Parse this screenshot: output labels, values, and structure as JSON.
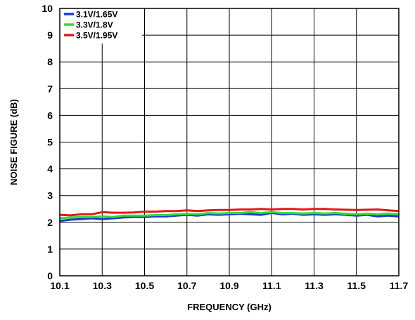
{
  "chart_data": {
    "type": "line",
    "title": "",
    "xlabel": "FREQUENCY (GHz)",
    "ylabel": "NOISE FIGURE (dB)",
    "xlim": [
      10.1,
      11.7
    ],
    "ylim": [
      0,
      10
    ],
    "x_ticks": [
      "10.1",
      "10.3",
      "10.5",
      "10.7",
      "10.9",
      "11.1",
      "11.3",
      "11.5",
      "11.7"
    ],
    "y_ticks": [
      "0",
      "1",
      "2",
      "3",
      "4",
      "5",
      "6",
      "7",
      "8",
      "9",
      "10"
    ],
    "grid": true,
    "legend_position": "top-left",
    "x": [
      10.1,
      10.15,
      10.2,
      10.25,
      10.3,
      10.35,
      10.4,
      10.45,
      10.5,
      10.55,
      10.6,
      10.65,
      10.7,
      10.75,
      10.8,
      10.85,
      10.9,
      10.95,
      11.0,
      11.05,
      11.1,
      11.15,
      11.2,
      11.25,
      11.3,
      11.35,
      11.4,
      11.45,
      11.5,
      11.55,
      11.6,
      11.65,
      11.7
    ],
    "series": [
      {
        "name": "3.1V/1.65V",
        "color": "#1a3ad6",
        "values": [
          2.05,
          2.1,
          2.12,
          2.15,
          2.12,
          2.15,
          2.18,
          2.2,
          2.2,
          2.22,
          2.22,
          2.25,
          2.28,
          2.25,
          2.3,
          2.28,
          2.3,
          2.32,
          2.3,
          2.28,
          2.35,
          2.3,
          2.32,
          2.28,
          2.3,
          2.28,
          2.3,
          2.28,
          2.25,
          2.28,
          2.22,
          2.25,
          2.22
        ]
      },
      {
        "name": "3.3V/1.8V",
        "color": "#2ee02e",
        "values": [
          2.15,
          2.18,
          2.2,
          2.2,
          2.22,
          2.2,
          2.25,
          2.25,
          2.25,
          2.27,
          2.27,
          2.3,
          2.32,
          2.3,
          2.35,
          2.33,
          2.35,
          2.35,
          2.38,
          2.35,
          2.38,
          2.35,
          2.35,
          2.33,
          2.35,
          2.33,
          2.35,
          2.32,
          2.3,
          2.32,
          2.3,
          2.33,
          2.3
        ]
      },
      {
        "name": "3.5V/1.95V",
        "color": "#e01818",
        "values": [
          2.28,
          2.26,
          2.3,
          2.3,
          2.38,
          2.36,
          2.36,
          2.37,
          2.4,
          2.4,
          2.42,
          2.42,
          2.45,
          2.42,
          2.45,
          2.46,
          2.46,
          2.48,
          2.48,
          2.5,
          2.48,
          2.5,
          2.5,
          2.48,
          2.5,
          2.5,
          2.48,
          2.47,
          2.46,
          2.47,
          2.48,
          2.45,
          2.42
        ]
      }
    ]
  }
}
